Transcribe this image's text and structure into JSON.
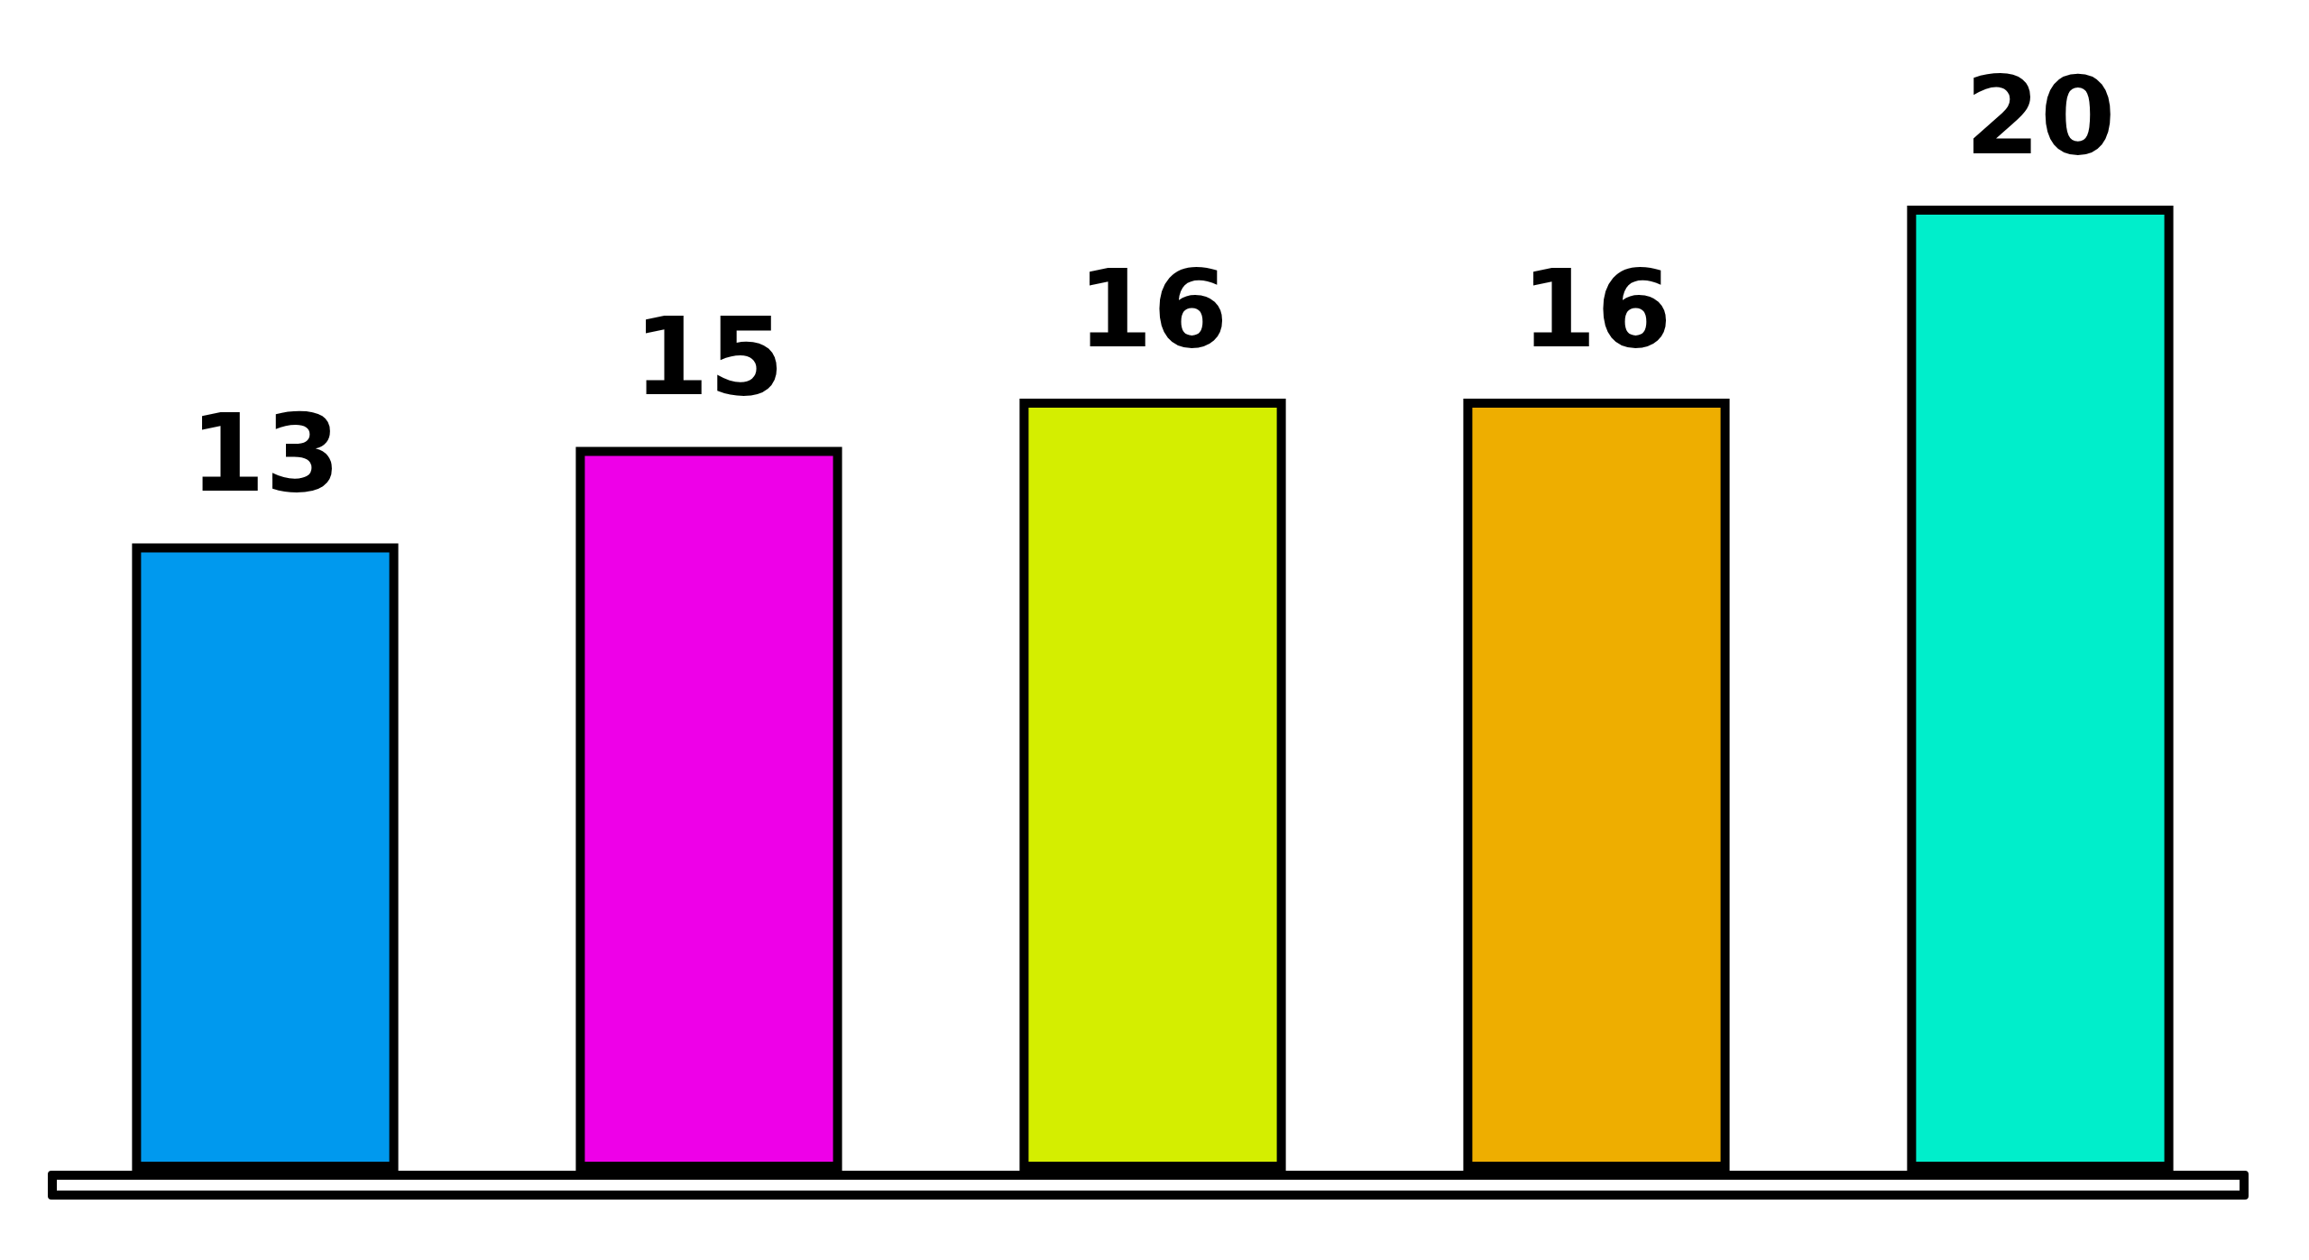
{
  "chart_data": {
    "type": "bar",
    "categories": [
      null,
      null,
      null,
      null,
      null
    ],
    "values": [
      13,
      15,
      16,
      16,
      20
    ],
    "colors": [
      "#0099ee",
      "#ee00e8",
      "#d4ee00",
      "#eeae00",
      "#00eecb"
    ],
    "data_labels": true,
    "grid": false
  }
}
